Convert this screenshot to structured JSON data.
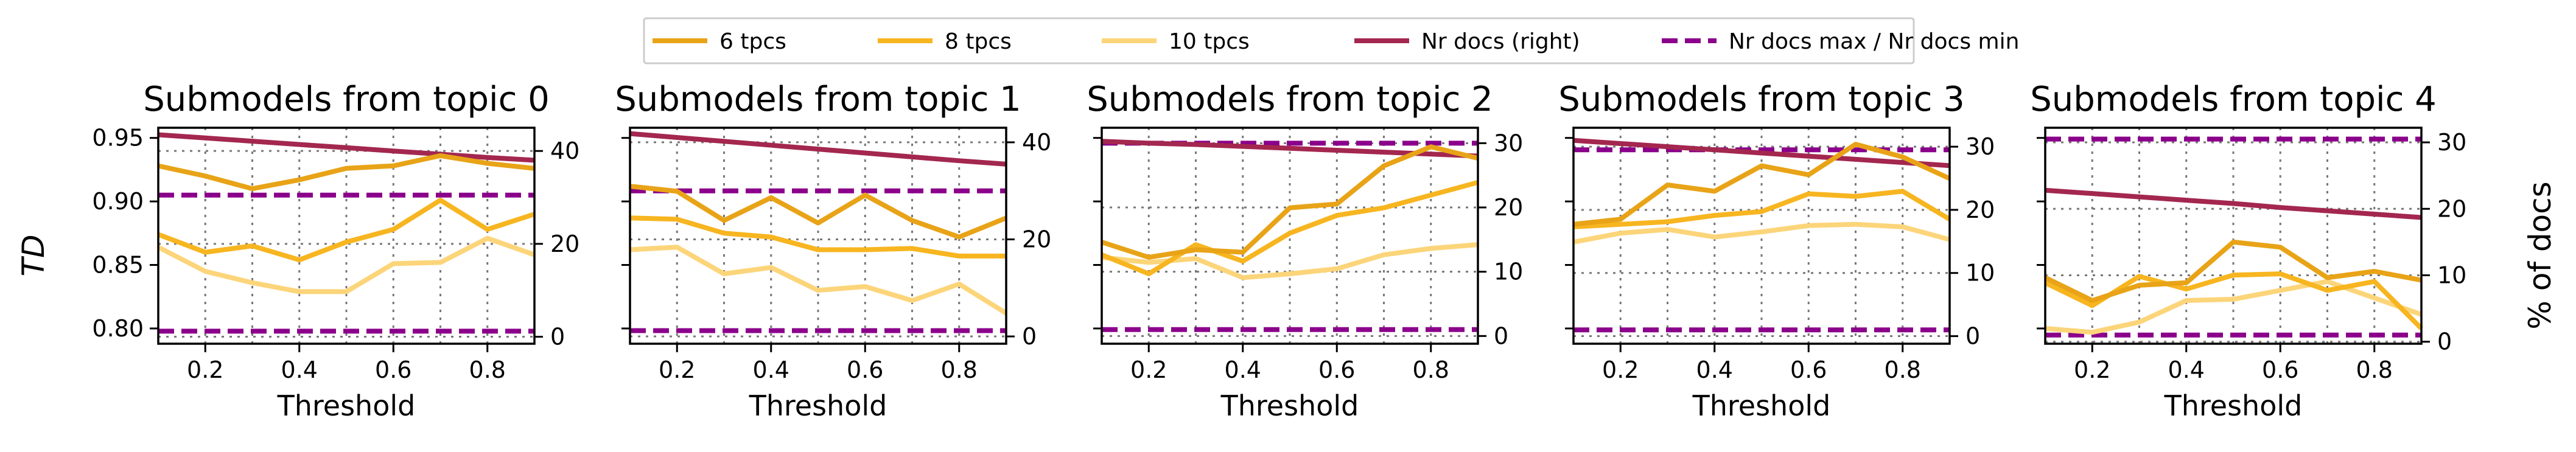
{
  "figure": {
    "left_ylabel": "TD",
    "right_ylabel": "% of docs"
  },
  "legend": [
    {
      "name": "6 tpcs",
      "color": "#E8A317",
      "style": "solid"
    },
    {
      "name": "8 tpcs",
      "color": "#F7B520",
      "style": "solid"
    },
    {
      "name": "10 tpcs",
      "color": "#FCD57A",
      "style": "solid"
    },
    {
      "name": "Nr docs (right)",
      "color": "#A3274F",
      "style": "solid"
    },
    {
      "name": "Nr docs max / Nr docs min",
      "color": "#8B008B",
      "style": "dashed"
    }
  ],
  "chart_data": [
    {
      "type": "line",
      "title": "Submodels from topic 0",
      "xlabel": "Threshold",
      "ylabel": "TD",
      "xlim": [
        0.1,
        0.9
      ],
      "xticks": [
        0.2,
        0.4,
        0.6,
        0.8
      ],
      "ylim": [
        0.788,
        0.958
      ],
      "yticks": [
        0.8,
        0.85,
        0.9,
        0.95
      ],
      "y2lim": [
        -1.5,
        45
      ],
      "y2ticks": [
        0,
        20,
        40
      ],
      "grid": true,
      "x": [
        0.1,
        0.2,
        0.3,
        0.4,
        0.5,
        0.6,
        0.7,
        0.8,
        0.9
      ],
      "series": [
        {
          "name": "6 tpcs",
          "axis": "left",
          "values": [
            0.928,
            0.92,
            0.91,
            0.917,
            0.926,
            0.928,
            0.936,
            0.93,
            0.926
          ]
        },
        {
          "name": "8 tpcs",
          "axis": "left",
          "values": [
            0.874,
            0.86,
            0.865,
            0.854,
            0.868,
            0.878,
            0.901,
            0.878,
            0.89
          ]
        },
        {
          "name": "10 tpcs",
          "axis": "left",
          "values": [
            0.864,
            0.845,
            0.836,
            0.829,
            0.829,
            0.851,
            0.852,
            0.871,
            0.858
          ]
        },
        {
          "name": "Nr docs (right)",
          "axis": "right",
          "values": [
            43.5,
            42.8,
            42.1,
            41.4,
            40.7,
            40.0,
            39.3,
            38.6,
            38.0
          ]
        },
        {
          "name": "Nr docs max",
          "axis": "right",
          "values": [
            30.5,
            30.5,
            30.5,
            30.5,
            30.5,
            30.5,
            30.5,
            30.5,
            30.5
          ]
        },
        {
          "name": "Nr docs min",
          "axis": "right",
          "values": [
            1.2,
            1.2,
            1.2,
            1.2,
            1.2,
            1.2,
            1.2,
            1.2,
            1.2
          ]
        }
      ]
    },
    {
      "type": "line",
      "title": "Submodels from topic 1",
      "xlabel": "Threshold",
      "xlim": [
        0.1,
        0.9
      ],
      "xticks": [
        0.2,
        0.4,
        0.6,
        0.8
      ],
      "ylim": [
        0.788,
        0.958
      ],
      "y2lim": [
        -1.5,
        43
      ],
      "y2ticks": [
        0,
        20,
        40
      ],
      "grid": true,
      "x": [
        0.1,
        0.2,
        0.3,
        0.4,
        0.5,
        0.6,
        0.7,
        0.8,
        0.9
      ],
      "series": [
        {
          "name": "6 tpcs",
          "axis": "left",
          "values": [
            0.912,
            0.908,
            0.885,
            0.903,
            0.883,
            0.905,
            0.885,
            0.872,
            0.887
          ]
        },
        {
          "name": "8 tpcs",
          "axis": "left",
          "values": [
            0.887,
            0.886,
            0.875,
            0.872,
            0.862,
            0.862,
            0.863,
            0.857,
            0.857
          ]
        },
        {
          "name": "10 tpcs",
          "axis": "left",
          "values": [
            0.862,
            0.864,
            0.843,
            0.848,
            0.83,
            0.833,
            0.822,
            0.835,
            0.812
          ]
        },
        {
          "name": "Nr docs (right)",
          "axis": "right",
          "values": [
            41.8,
            41.0,
            40.2,
            39.4,
            38.6,
            37.8,
            37.0,
            36.2,
            35.5
          ]
        },
        {
          "name": "Nr docs max",
          "axis": "right",
          "values": [
            30.0,
            30.0,
            30.0,
            30.0,
            30.0,
            30.0,
            30.0,
            30.0,
            30.0
          ]
        },
        {
          "name": "Nr docs min",
          "axis": "right",
          "values": [
            1.2,
            1.2,
            1.2,
            1.2,
            1.2,
            1.2,
            1.2,
            1.2,
            1.2
          ]
        }
      ]
    },
    {
      "type": "line",
      "title": "Submodels from topic 2",
      "xlabel": "Threshold",
      "xlim": [
        0.1,
        0.9
      ],
      "xticks": [
        0.2,
        0.4,
        0.6,
        0.8
      ],
      "ylim": [
        0.788,
        0.958
      ],
      "y2lim": [
        -1.2,
        32.4
      ],
      "y2ticks": [
        0,
        10,
        20,
        30
      ],
      "grid": true,
      "x": [
        0.1,
        0.2,
        0.3,
        0.4,
        0.5,
        0.6,
        0.7,
        0.8,
        0.9
      ],
      "series": [
        {
          "name": "6 tpcs",
          "axis": "left",
          "values": [
            0.868,
            0.856,
            0.862,
            0.86,
            0.895,
            0.898,
            0.928,
            0.943,
            0.934
          ]
        },
        {
          "name": "8 tpcs",
          "axis": "left",
          "values": [
            0.858,
            0.843,
            0.866,
            0.853,
            0.875,
            0.889,
            0.895,
            0.905,
            0.915
          ]
        },
        {
          "name": "10 tpcs",
          "axis": "left",
          "values": [
            0.856,
            0.852,
            0.855,
            0.84,
            0.843,
            0.847,
            0.858,
            0.863,
            0.866
          ]
        },
        {
          "name": "Nr docs (right)",
          "axis": "right",
          "values": [
            30.3,
            30.0,
            29.8,
            29.5,
            29.2,
            28.9,
            28.6,
            28.3,
            28.0
          ]
        },
        {
          "name": "Nr docs max",
          "axis": "right",
          "values": [
            30.0,
            30.0,
            30.0,
            30.0,
            30.0,
            30.0,
            30.0,
            30.0,
            30.0
          ]
        },
        {
          "name": "Nr docs min",
          "axis": "right",
          "values": [
            1.0,
            1.0,
            1.0,
            1.0,
            1.0,
            1.0,
            1.0,
            1.0,
            1.0
          ]
        }
      ]
    },
    {
      "type": "line",
      "title": "Submodels from topic 3",
      "xlabel": "Threshold",
      "xlim": [
        0.1,
        0.9
      ],
      "xticks": [
        0.2,
        0.4,
        0.6,
        0.8
      ],
      "ylim": [
        0.788,
        0.958
      ],
      "y2lim": [
        -1.2,
        33.0
      ],
      "y2ticks": [
        0,
        10,
        20,
        30
      ],
      "grid": true,
      "x": [
        0.1,
        0.2,
        0.3,
        0.4,
        0.5,
        0.6,
        0.7,
        0.8,
        0.9
      ],
      "series": [
        {
          "name": "6 tpcs",
          "axis": "left",
          "values": [
            0.882,
            0.886,
            0.913,
            0.908,
            0.928,
            0.921,
            0.945,
            0.935,
            0.918
          ]
        },
        {
          "name": "8 tpcs",
          "axis": "left",
          "values": [
            0.88,
            0.882,
            0.884,
            0.889,
            0.892,
            0.906,
            0.904,
            0.908,
            0.886
          ]
        },
        {
          "name": "10 tpcs",
          "axis": "left",
          "values": [
            0.868,
            0.875,
            0.878,
            0.872,
            0.876,
            0.881,
            0.882,
            0.88,
            0.87
          ]
        },
        {
          "name": "Nr docs (right)",
          "axis": "right",
          "values": [
            31.0,
            30.5,
            30.0,
            29.5,
            29.0,
            28.5,
            28.0,
            27.5,
            27.0
          ]
        },
        {
          "name": "Nr docs max",
          "axis": "right",
          "values": [
            29.5,
            29.5,
            29.5,
            29.5,
            29.5,
            29.5,
            29.5,
            29.5,
            29.5
          ]
        },
        {
          "name": "Nr docs min",
          "axis": "right",
          "values": [
            1.0,
            1.0,
            1.0,
            1.0,
            1.0,
            1.0,
            1.0,
            1.0,
            1.0
          ]
        }
      ]
    },
    {
      "type": "line",
      "title": "Submodels from topic 4",
      "xlabel": "Threshold",
      "xlim": [
        0.1,
        0.9
      ],
      "xticks": [
        0.2,
        0.4,
        0.6,
        0.8
      ],
      "ylim": [
        0.788,
        0.958
      ],
      "y2lim": [
        -0.3,
        32.2
      ],
      "y2ticks": [
        0,
        10,
        20,
        30
      ],
      "grid": true,
      "x": [
        0.1,
        0.2,
        0.3,
        0.4,
        0.5,
        0.6,
        0.7,
        0.8,
        0.9
      ],
      "series": [
        {
          "name": "6 tpcs",
          "axis": "left",
          "values": [
            0.84,
            0.822,
            0.834,
            0.836,
            0.868,
            0.864,
            0.84,
            0.845,
            0.838
          ]
        },
        {
          "name": "8 tpcs",
          "axis": "left",
          "values": [
            0.836,
            0.818,
            0.841,
            0.831,
            0.842,
            0.843,
            0.83,
            0.837,
            0.8
          ]
        },
        {
          "name": "10 tpcs",
          "axis": "left",
          "values": [
            0.8,
            0.797,
            0.805,
            0.822,
            0.823,
            0.83,
            0.837,
            0.824,
            0.811
          ]
        },
        {
          "name": "Nr docs (right)",
          "axis": "right",
          "values": [
            22.8,
            22.3,
            21.8,
            21.3,
            20.8,
            20.2,
            19.7,
            19.2,
            18.7
          ]
        },
        {
          "name": "Nr docs max",
          "axis": "right",
          "values": [
            30.5,
            30.5,
            30.5,
            30.5,
            30.5,
            30.5,
            30.5,
            30.5,
            30.5
          ]
        },
        {
          "name": "Nr docs min",
          "axis": "right",
          "values": [
            1.0,
            1.0,
            1.0,
            1.0,
            1.0,
            1.0,
            1.0,
            1.0,
            1.0
          ]
        }
      ]
    }
  ]
}
